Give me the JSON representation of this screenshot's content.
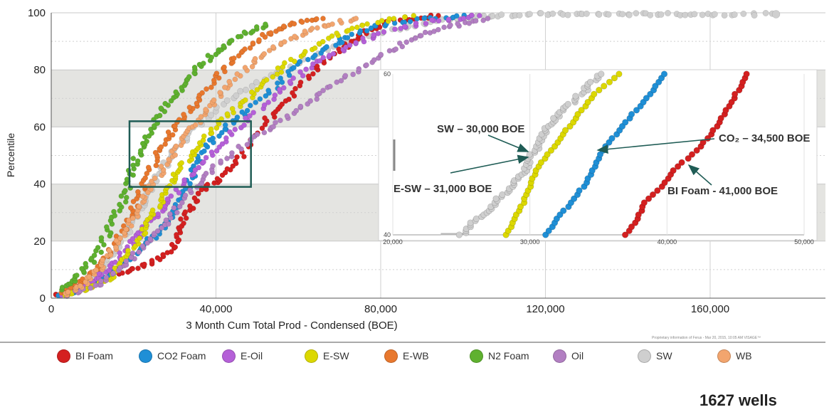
{
  "footer_note": "Proprietary information of Ferus - Mar 20, 2015, 10:05 AM  VISAGE™",
  "wells_count": "1627 wells",
  "legend": [
    {
      "label": "BI Foam",
      "color": "#d42020"
    },
    {
      "label": "CO2 Foam",
      "color": "#1f8fd6"
    },
    {
      "label": "E-Oil",
      "color": "#b560d8"
    },
    {
      "label": "E-SW",
      "color": "#dcd800"
    },
    {
      "label": "E-WB",
      "color": "#e8782e"
    },
    {
      "label": "N2 Foam",
      "color": "#5fb12f"
    },
    {
      "label": "Oil",
      "color": "#b27fc2"
    },
    {
      "label": "SW",
      "color": "#cfcfcf"
    },
    {
      "label": "WB",
      "color": "#f2a56e"
    }
  ],
  "chart_data": [
    {
      "type": "scatter",
      "title": "",
      "xlabel": "3 Month Cum Total Prod - Condensed (BOE)",
      "ylabel": "Percentile",
      "xlim": [
        0,
        188000
      ],
      "ylim": [
        0,
        100
      ],
      "x_ticks": [
        "0",
        "40,000",
        "80,000",
        "120,000",
        "160,000"
      ],
      "x_tick_values": [
        0,
        40000,
        80000,
        120000,
        160000
      ],
      "y_ticks": [
        "0",
        "20",
        "40",
        "60",
        "80",
        "100"
      ],
      "y_tick_values": [
        0,
        20,
        40,
        60,
        80,
        100
      ],
      "shaded_bands": [
        [
          20,
          40
        ],
        [
          60,
          80
        ]
      ],
      "grid": true,
      "highlight_box": {
        "x": [
          19000,
          48500
        ],
        "y": [
          39,
          62
        ]
      },
      "series": [
        {
          "name": "SW",
          "color": "#cfcfcf",
          "points": [
            [
              2000,
              1
            ],
            [
              8000,
              4
            ],
            [
              13000,
              10
            ],
            [
              17000,
              20
            ],
            [
              21000,
              30
            ],
            [
              25000,
              40
            ],
            [
              29000,
              50
            ],
            [
              35000,
              60
            ],
            [
              44000,
              70
            ],
            [
              56000,
              80
            ],
            [
              72000,
              90
            ],
            [
              86000,
              95
            ],
            [
              98000,
              98
            ],
            [
              106000,
              99
            ],
            [
              118000,
              99.5
            ],
            [
              128000,
              99.5
            ],
            [
              140000,
              99.5
            ],
            [
              150000,
              99.5
            ],
            [
              162000,
              99.5
            ],
            [
              176000,
              99.5
            ]
          ]
        },
        {
          "name": "BI Foam",
          "color": "#d42020",
          "points": [
            [
              1000,
              1
            ],
            [
              10000,
              4
            ],
            [
              15000,
              8
            ],
            [
              22000,
              11
            ],
            [
              28000,
              15
            ],
            [
              31000,
              22
            ],
            [
              33000,
              30
            ],
            [
              37000,
              38
            ],
            [
              41000,
              42
            ],
            [
              46000,
              50
            ],
            [
              52000,
              62
            ],
            [
              58000,
              70
            ],
            [
              64000,
              80
            ],
            [
              70000,
              87
            ],
            [
              76000,
              93
            ],
            [
              82000,
              97
            ],
            [
              94000,
              99
            ]
          ]
        },
        {
          "name": "CO2 Foam",
          "color": "#1f8fd6",
          "points": [
            [
              2000,
              1
            ],
            [
              9000,
              4
            ],
            [
              14000,
              8
            ],
            [
              18000,
              13
            ],
            [
              23000,
              19
            ],
            [
              28000,
              26
            ],
            [
              31000,
              33
            ],
            [
              34000,
              42
            ],
            [
              36000,
              50
            ],
            [
              41000,
              58
            ],
            [
              47000,
              65
            ],
            [
              55000,
              75
            ],
            [
              62000,
              84
            ],
            [
              70000,
              90
            ],
            [
              78000,
              95
            ],
            [
              90000,
              98
            ],
            [
              102000,
              99
            ]
          ]
        },
        {
          "name": "E-Oil",
          "color": "#b560d8",
          "points": [
            [
              2000,
              1
            ],
            [
              10000,
              6
            ],
            [
              15000,
              12
            ],
            [
              20000,
              20
            ],
            [
              24000,
              27
            ],
            [
              29000,
              35
            ],
            [
              35000,
              45
            ],
            [
              41000,
              54
            ],
            [
              48000,
              63
            ],
            [
              56000,
              73
            ],
            [
              64000,
              82
            ],
            [
              72000,
              88
            ],
            [
              80000,
              93
            ],
            [
              92000,
              97
            ],
            [
              104000,
              99
            ]
          ]
        },
        {
          "name": "E-SW",
          "color": "#dcd800",
          "points": [
            [
              3000,
              1
            ],
            [
              9000,
              3
            ],
            [
              14000,
              7
            ],
            [
              18000,
              14
            ],
            [
              22000,
              22
            ],
            [
              25000,
              30
            ],
            [
              28000,
              38
            ],
            [
              31000,
              45
            ],
            [
              35000,
              52
            ],
            [
              40000,
              60
            ],
            [
              46000,
              68
            ],
            [
              52000,
              76
            ],
            [
              59000,
              84
            ],
            [
              67000,
              91
            ],
            [
              76000,
              96
            ],
            [
              88000,
              99
            ]
          ]
        },
        {
          "name": "E-WB",
          "color": "#e8782e",
          "points": [
            [
              2000,
              2
            ],
            [
              8000,
              6
            ],
            [
              12000,
              12
            ],
            [
              16000,
              20
            ],
            [
              19000,
              28
            ],
            [
              22000,
              38
            ],
            [
              25000,
              48
            ],
            [
              28000,
              56
            ],
            [
              32000,
              63
            ],
            [
              36000,
              70
            ],
            [
              41000,
              79
            ],
            [
              46000,
              86
            ],
            [
              52000,
              92
            ],
            [
              58000,
              96
            ],
            [
              66000,
              98
            ]
          ]
        },
        {
          "name": "N2 Foam",
          "color": "#5fb12f",
          "points": [
            [
              2000,
              3
            ],
            [
              7000,
              8
            ],
            [
              11000,
              15
            ],
            [
              14000,
              24
            ],
            [
              17000,
              33
            ],
            [
              19000,
              42
            ],
            [
              21000,
              50
            ],
            [
              24000,
              58
            ],
            [
              27000,
              66
            ],
            [
              31000,
              73
            ],
            [
              35000,
              80
            ],
            [
              40000,
              86
            ],
            [
              46000,
              92
            ],
            [
              52000,
              96
            ]
          ]
        },
        {
          "name": "Oil",
          "color": "#b27fc2",
          "points": [
            [
              4000,
              1
            ],
            [
              12000,
              5
            ],
            [
              18000,
              12
            ],
            [
              24000,
              20
            ],
            [
              29000,
              28
            ],
            [
              34000,
              38
            ],
            [
              40000,
              46
            ],
            [
              48000,
              55
            ],
            [
              56000,
              62
            ],
            [
              64000,
              70
            ],
            [
              72000,
              78
            ],
            [
              80000,
              85
            ],
            [
              88000,
              91
            ],
            [
              96000,
              95
            ],
            [
              106000,
              98
            ]
          ]
        },
        {
          "name": "WB",
          "color": "#f2a56e",
          "points": [
            [
              3000,
              1
            ],
            [
              8000,
              5
            ],
            [
              12000,
              11
            ],
            [
              16000,
              19
            ],
            [
              20000,
              28
            ],
            [
              23000,
              36
            ],
            [
              27000,
              45
            ],
            [
              31000,
              53
            ],
            [
              35000,
              61
            ],
            [
              39000,
              68
            ],
            [
              44000,
              76
            ],
            [
              50000,
              84
            ],
            [
              57000,
              90
            ],
            [
              65000,
              95
            ],
            [
              74000,
              98
            ]
          ]
        }
      ]
    },
    {
      "type": "scatter",
      "title": "",
      "xlim": [
        20000,
        50000
      ],
      "ylim": [
        40,
        60
      ],
      "x_ticks": [
        "20,000",
        "30,000",
        "40,000",
        "50,000"
      ],
      "x_tick_values": [
        20000,
        30000,
        40000,
        50000
      ],
      "y_ticks": [
        "40",
        "60"
      ],
      "y_tick_values": [
        40,
        60
      ],
      "series": [
        {
          "name": "SW",
          "color": "#cfcfcf",
          "points": [
            [
              25000,
              40
            ],
            [
              26200,
              42
            ],
            [
              27500,
              44
            ],
            [
              28600,
              46
            ],
            [
              29600,
              48
            ],
            [
              30200,
              50
            ],
            [
              30800,
              52
            ],
            [
              31600,
              54
            ],
            [
              32800,
              56
            ],
            [
              34000,
              58
            ],
            [
              35200,
              60
            ]
          ]
        },
        {
          "name": "E-SW",
          "color": "#dcd800",
          "points": [
            [
              28300,
              40
            ],
            [
              28900,
              42
            ],
            [
              29500,
              44
            ],
            [
              30000,
              46
            ],
            [
              30500,
              48
            ],
            [
              31300,
              50
            ],
            [
              32200,
              52
            ],
            [
              33100,
              54
            ],
            [
              34000,
              56
            ],
            [
              35000,
              58
            ],
            [
              36500,
              60
            ]
          ]
        },
        {
          "name": "CO2 Foam",
          "color": "#1f8fd6",
          "points": [
            [
              31200,
              40
            ],
            [
              32000,
              42
            ],
            [
              33000,
              44
            ],
            [
              33900,
              46
            ],
            [
              34600,
              48
            ],
            [
              35100,
              50
            ],
            [
              36000,
              52
            ],
            [
              37000,
              54
            ],
            [
              38000,
              56
            ],
            [
              39000,
              58
            ],
            [
              39800,
              60
            ]
          ]
        },
        {
          "name": "BI Foam",
          "color": "#d42020",
          "points": [
            [
              37000,
              40
            ],
            [
              37800,
              42
            ],
            [
              38400,
              44
            ],
            [
              39600,
              46
            ],
            [
              40500,
              48
            ],
            [
              41800,
              50
            ],
            [
              43000,
              52
            ],
            [
              43800,
              54
            ],
            [
              44500,
              56
            ],
            [
              45200,
              58
            ],
            [
              45800,
              60
            ]
          ]
        }
      ],
      "annotations": [
        {
          "text": "SW – 30,000 BOE"
        },
        {
          "text": "E-SW – 31,000 BOE"
        },
        {
          "text": "CO₂ – 34,500 BOE"
        },
        {
          "text": "BI Foam -  41,000 BOE"
        }
      ]
    }
  ]
}
